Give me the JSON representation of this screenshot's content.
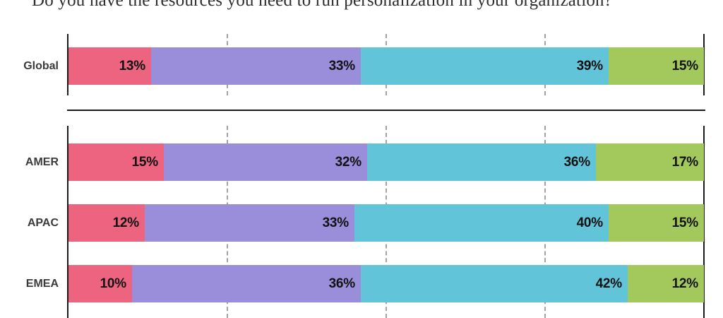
{
  "title": "Do you have the resources you need to run personalization in your organization?",
  "chart_data": {
    "type": "bar",
    "variant": "stacked-horizontal",
    "unit": "%",
    "xlim": [
      0,
      100
    ],
    "grid": true,
    "gridline_values": [
      25,
      50,
      75
    ],
    "legend": "none",
    "segment_colors": [
      "#ec6480",
      "#9a8dd9",
      "#62c4d8",
      "#a3c95c"
    ],
    "groups": [
      {
        "name": "global",
        "rows": [
          {
            "label": "Global",
            "values": [
              13,
              33,
              39,
              15
            ]
          }
        ]
      },
      {
        "name": "regions",
        "rows": [
          {
            "label": "AMER",
            "values": [
              15,
              32,
              36,
              17
            ]
          },
          {
            "label": "APAC",
            "values": [
              12,
              33,
              40,
              15
            ]
          },
          {
            "label": "EMEA",
            "values": [
              10,
              36,
              42,
              12
            ]
          }
        ]
      }
    ]
  },
  "colors": {
    "axis": "#1a1a1a",
    "gridline": "#a3a3a3",
    "row_label": "#3b3b3b",
    "value_label": "#121212",
    "background": "#ffffff"
  }
}
